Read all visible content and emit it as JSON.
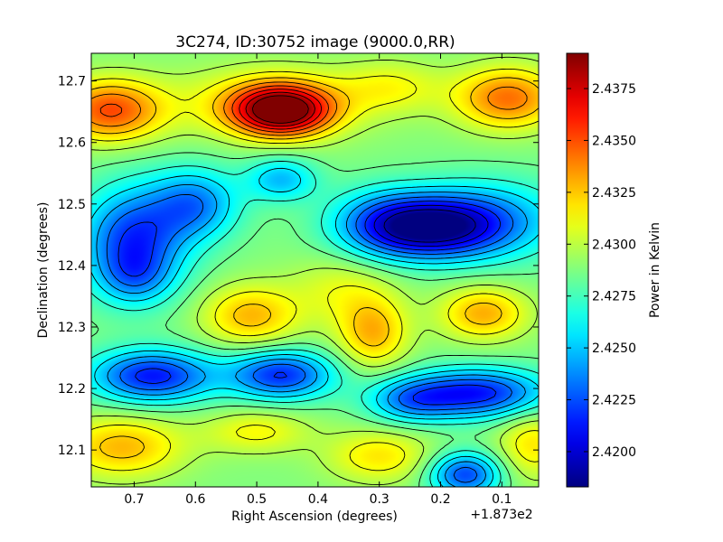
{
  "chart_data": {
    "type": "heatmap",
    "title": "3C274, ID:30752 image (9000.0,RR)",
    "xlabel": "Right Ascension (degrees)",
    "ylabel": "Declination (degrees)",
    "x_offset_label": "+1.873e2",
    "xlim": [
      0.77,
      0.04
    ],
    "ylim": [
      12.04,
      12.745
    ],
    "x_ticks": [
      0.7,
      0.6,
      0.5,
      0.4,
      0.3,
      0.2,
      0.1
    ],
    "x_tick_labels": [
      "0.7",
      "0.6",
      "0.5",
      "0.4",
      "0.3",
      "0.2",
      "0.1"
    ],
    "y_ticks": [
      12.1,
      12.2,
      12.3,
      12.4,
      12.5,
      12.6,
      12.7
    ],
    "y_tick_labels": [
      "12.1",
      "12.2",
      "12.3",
      "12.4",
      "12.5",
      "12.6",
      "12.7"
    ],
    "colorbar": {
      "label": "Power in Kelvin",
      "range": [
        2.4183,
        2.4392
      ],
      "ticks": [
        2.42,
        2.4225,
        2.425,
        2.4275,
        2.43,
        2.4325,
        2.435,
        2.4375
      ],
      "tick_labels": [
        "2.4200",
        "2.4225",
        "2.4250",
        "2.4275",
        "2.4300",
        "2.4325",
        "2.4350",
        "2.4375"
      ],
      "colormap": "jet"
    },
    "baseline_value": 2.4288,
    "features": [
      {
        "ra": 0.46,
        "dec": 12.652,
        "amplitude": 0.0104,
        "sigma_ra": 0.055,
        "sigma_dec": 0.028
      },
      {
        "ra": 0.48,
        "dec": 12.665,
        "amplitude": 0.003,
        "sigma_ra": 0.11,
        "sigma_dec": 0.04
      },
      {
        "ra": 0.74,
        "dec": 12.652,
        "amplitude": 0.0062,
        "sigma_ra": 0.06,
        "sigma_dec": 0.035
      },
      {
        "ra": 0.09,
        "dec": 12.672,
        "amplitude": 0.0055,
        "sigma_ra": 0.06,
        "sigma_dec": 0.035
      },
      {
        "ra": 0.28,
        "dec": 12.69,
        "amplitude": 0.0022,
        "sigma_ra": 0.06,
        "sigma_dec": 0.03
      },
      {
        "ra": 0.22,
        "dec": 12.462,
        "amplitude": -0.009,
        "sigma_ra": 0.08,
        "sigma_dec": 0.035
      },
      {
        "ra": 0.12,
        "dec": 12.475,
        "amplitude": -0.004,
        "sigma_ra": 0.09,
        "sigma_dec": 0.045
      },
      {
        "ra": 0.3,
        "dec": 12.47,
        "amplitude": -0.003,
        "sigma_ra": 0.06,
        "sigma_dec": 0.04
      },
      {
        "ra": 0.7,
        "dec": 12.44,
        "amplitude": -0.007,
        "sigma_ra": 0.06,
        "sigma_dec": 0.06
      },
      {
        "ra": 0.6,
        "dec": 12.5,
        "amplitude": -0.005,
        "sigma_ra": 0.05,
        "sigma_dec": 0.04
      },
      {
        "ra": 0.46,
        "dec": 12.54,
        "amplitude": -0.004,
        "sigma_ra": 0.04,
        "sigma_dec": 0.025
      },
      {
        "ra": 0.7,
        "dec": 12.38,
        "amplitude": -0.0025,
        "sigma_ra": 0.04,
        "sigma_dec": 0.03
      },
      {
        "ra": 0.51,
        "dec": 12.318,
        "amplitude": 0.004,
        "sigma_ra": 0.055,
        "sigma_dec": 0.035
      },
      {
        "ra": 0.31,
        "dec": 12.29,
        "amplitude": 0.004,
        "sigma_ra": 0.04,
        "sigma_dec": 0.04
      },
      {
        "ra": 0.13,
        "dec": 12.322,
        "amplitude": 0.0042,
        "sigma_ra": 0.05,
        "sigma_dec": 0.03
      },
      {
        "ra": 0.36,
        "dec": 12.36,
        "amplitude": 0.002,
        "sigma_ra": 0.06,
        "sigma_dec": 0.04
      },
      {
        "ra": 0.67,
        "dec": 12.22,
        "amplitude": -0.0075,
        "sigma_ra": 0.07,
        "sigma_dec": 0.03
      },
      {
        "ra": 0.46,
        "dec": 12.222,
        "amplitude": -0.007,
        "sigma_ra": 0.06,
        "sigma_dec": 0.028
      },
      {
        "ra": 0.14,
        "dec": 12.192,
        "amplitude": -0.0075,
        "sigma_ra": 0.08,
        "sigma_dec": 0.028
      },
      {
        "ra": 0.25,
        "dec": 12.18,
        "amplitude": -0.004,
        "sigma_ra": 0.05,
        "sigma_dec": 0.025
      },
      {
        "ra": 0.16,
        "dec": 12.06,
        "amplitude": -0.0065,
        "sigma_ra": 0.04,
        "sigma_dec": 0.025
      },
      {
        "ra": 0.72,
        "dec": 12.105,
        "amplitude": 0.004,
        "sigma_ra": 0.07,
        "sigma_dec": 0.035
      },
      {
        "ra": 0.5,
        "dec": 12.13,
        "amplitude": 0.0025,
        "sigma_ra": 0.06,
        "sigma_dec": 0.025
      },
      {
        "ra": 0.3,
        "dec": 12.09,
        "amplitude": 0.003,
        "sigma_ra": 0.06,
        "sigma_dec": 0.03
      },
      {
        "ra": 0.05,
        "dec": 12.11,
        "amplitude": 0.003,
        "sigma_ra": 0.04,
        "sigma_dec": 0.04
      }
    ],
    "contour_levels": [
      2.4193,
      2.4206,
      2.4219,
      2.4232,
      2.4245,
      2.4258,
      2.4271,
      2.4284,
      2.4297,
      2.431,
      2.4323,
      2.4336,
      2.4349,
      2.4362,
      2.4375,
      2.4388
    ]
  }
}
